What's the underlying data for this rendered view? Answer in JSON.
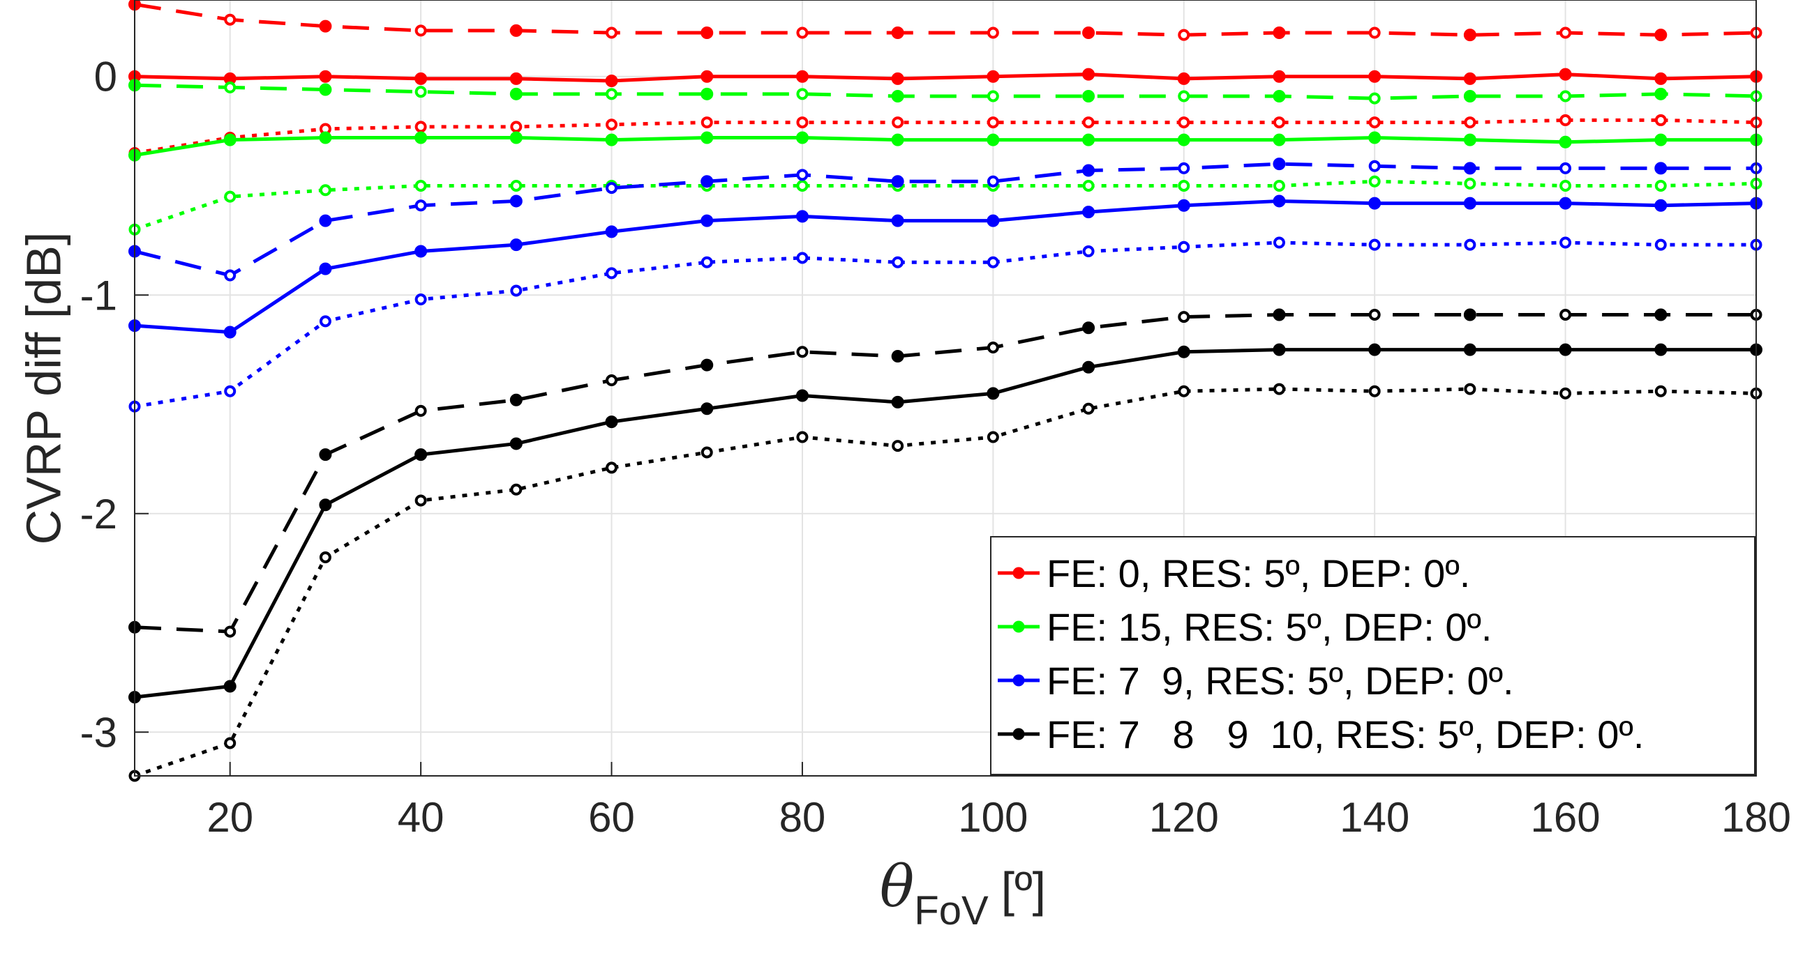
{
  "chart_data": {
    "type": "line",
    "title": "",
    "xlabel": {
      "symbol": "θ",
      "subscript": "FoV",
      "unit": "[º]"
    },
    "ylabel": "CVRP diff [dB]",
    "xlim": [
      10,
      180
    ],
    "ylim": [
      -3.2,
      0.35
    ],
    "xticks": [
      20,
      40,
      60,
      80,
      100,
      120,
      140,
      160,
      180
    ],
    "yticks": [
      0,
      -1,
      -2,
      -3
    ],
    "grid": true,
    "legend_position": "bottom-right",
    "x": [
      10,
      20,
      30,
      40,
      50,
      60,
      70,
      80,
      90,
      100,
      110,
      120,
      130,
      140,
      150,
      160,
      170,
      180
    ],
    "legend": [
      {
        "label": "FE: 0, RES: 5º, DEP: 0º.",
        "color": "#ff0000"
      },
      {
        "label": "FE: 15, RES: 5º, DEP: 0º.",
        "color": "#00ff00"
      },
      {
        "label": "FE: 7  9, RES: 5º, DEP: 0º.",
        "color": "#0000ff"
      },
      {
        "label": "FE: 7   8   9  10, RES: 5º, DEP: 0º.",
        "color": "#000000"
      }
    ],
    "series": [
      {
        "name": "FE: 0, RES: 5º, DEP: 0º. (solid)",
        "color": "#ff0000",
        "style": "solid",
        "marker": "filled",
        "values": [
          0.0,
          -0.01,
          0.0,
          -0.01,
          -0.01,
          -0.02,
          0.0,
          0.0,
          -0.01,
          0.0,
          0.01,
          -0.01,
          0.0,
          0.0,
          -0.01,
          0.01,
          -0.01,
          0.0
        ]
      },
      {
        "name": "FE: 0, RES: 5º, DEP: 0º. (dashed)",
        "color": "#ff0000",
        "style": "dashed",
        "marker": "mixed",
        "values": [
          0.33,
          0.26,
          0.23,
          0.21,
          0.21,
          0.2,
          0.2,
          0.2,
          0.2,
          0.2,
          0.2,
          0.19,
          0.2,
          0.2,
          0.19,
          0.2,
          0.19,
          0.2
        ]
      },
      {
        "name": "FE: 0, RES: 5º, DEP: 0º. (dotted)",
        "color": "#ff0000",
        "style": "dotted",
        "marker": "open",
        "values": [
          -0.35,
          -0.28,
          -0.24,
          -0.23,
          -0.23,
          -0.22,
          -0.21,
          -0.21,
          -0.21,
          -0.21,
          -0.21,
          -0.21,
          -0.21,
          -0.21,
          -0.21,
          -0.2,
          -0.2,
          -0.21
        ]
      },
      {
        "name": "FE: 15, RES: 5º, DEP: 0º. (solid)",
        "color": "#00ff00",
        "style": "solid",
        "marker": "filled",
        "values": [
          -0.36,
          -0.29,
          -0.28,
          -0.28,
          -0.28,
          -0.29,
          -0.28,
          -0.28,
          -0.29,
          -0.29,
          -0.29,
          -0.29,
          -0.29,
          -0.28,
          -0.29,
          -0.3,
          -0.29,
          -0.29
        ]
      },
      {
        "name": "FE: 15, RES: 5º, DEP: 0º. (dashed)",
        "color": "#00ff00",
        "style": "dashed",
        "marker": "mixed",
        "values": [
          -0.04,
          -0.05,
          -0.06,
          -0.07,
          -0.08,
          -0.08,
          -0.08,
          -0.08,
          -0.09,
          -0.09,
          -0.09,
          -0.09,
          -0.09,
          -0.1,
          -0.09,
          -0.09,
          -0.08,
          -0.09
        ]
      },
      {
        "name": "FE: 15, RES: 5º, DEP: 0º. (dotted)",
        "color": "#00ff00",
        "style": "dotted",
        "marker": "open",
        "values": [
          -0.7,
          -0.55,
          -0.52,
          -0.5,
          -0.5,
          -0.5,
          -0.5,
          -0.5,
          -0.5,
          -0.5,
          -0.5,
          -0.5,
          -0.5,
          -0.48,
          -0.49,
          -0.5,
          -0.5,
          -0.49
        ]
      },
      {
        "name": "FE: 7  9, RES: 5º, DEP: 0º. (solid)",
        "color": "#0000ff",
        "style": "solid",
        "marker": "filled",
        "values": [
          -1.14,
          -1.17,
          -0.88,
          -0.8,
          -0.77,
          -0.71,
          -0.66,
          -0.64,
          -0.66,
          -0.66,
          -0.62,
          -0.59,
          -0.57,
          -0.58,
          -0.58,
          -0.58,
          -0.59,
          -0.58
        ]
      },
      {
        "name": "FE: 7  9, RES: 5º, DEP: 0º. (dashed)",
        "color": "#0000ff",
        "style": "dashed",
        "marker": "mixed",
        "values": [
          -0.8,
          -0.91,
          -0.66,
          -0.59,
          -0.57,
          -0.51,
          -0.48,
          -0.45,
          -0.48,
          -0.48,
          -0.43,
          -0.42,
          -0.4,
          -0.41,
          -0.42,
          -0.42,
          -0.42,
          -0.42
        ]
      },
      {
        "name": "FE: 7  9, RES: 5º, DEP: 0º. (dotted)",
        "color": "#0000ff",
        "style": "dotted",
        "marker": "open",
        "values": [
          -1.51,
          -1.44,
          -1.12,
          -1.02,
          -0.98,
          -0.9,
          -0.85,
          -0.83,
          -0.85,
          -0.85,
          -0.8,
          -0.78,
          -0.76,
          -0.77,
          -0.77,
          -0.76,
          -0.77,
          -0.77
        ]
      },
      {
        "name": "FE: 7   8   9  10, RES: 5º, DEP: 0º. (solid)",
        "color": "#000000",
        "style": "solid",
        "marker": "filled",
        "values": [
          -2.84,
          -2.79,
          -1.96,
          -1.73,
          -1.68,
          -1.58,
          -1.52,
          -1.46,
          -1.49,
          -1.45,
          -1.33,
          -1.26,
          -1.25,
          -1.25,
          -1.25,
          -1.25,
          -1.25,
          -1.25
        ]
      },
      {
        "name": "FE: 7   8   9  10, RES: 5º, DEP: 0º. (dashed)",
        "color": "#000000",
        "style": "dashed",
        "marker": "mixed",
        "values": [
          -2.52,
          -2.54,
          -1.73,
          -1.53,
          -1.48,
          -1.39,
          -1.32,
          -1.26,
          -1.28,
          -1.24,
          -1.15,
          -1.1,
          -1.09,
          -1.09,
          -1.09,
          -1.09,
          -1.09,
          -1.09
        ]
      },
      {
        "name": "FE: 7   8   9  10, RES: 5º, DEP: 0º. (dotted)",
        "color": "#000000",
        "style": "dotted",
        "marker": "open",
        "values": [
          -3.2,
          -3.05,
          -2.2,
          -1.94,
          -1.89,
          -1.79,
          -1.72,
          -1.65,
          -1.69,
          -1.65,
          -1.52,
          -1.44,
          -1.43,
          -1.44,
          -1.43,
          -1.45,
          -1.44,
          -1.45
        ]
      }
    ]
  }
}
